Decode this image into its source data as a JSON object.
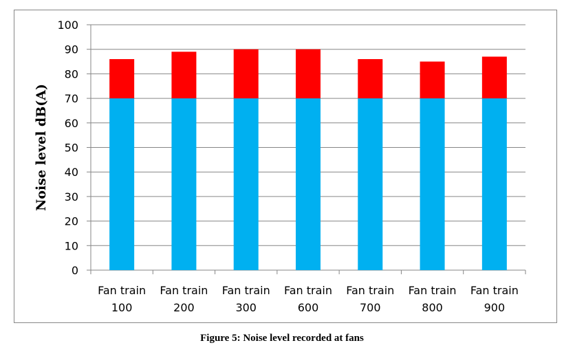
{
  "chart_data": {
    "type": "bar",
    "stacked": true,
    "categories": [
      "Fan train 100",
      "Fan train 200",
      "Fan train 300",
      "Fan train 600",
      "Fan train 700",
      "Fan train 800",
      "Fan train 900"
    ],
    "category_lines": [
      [
        "Fan train",
        "100"
      ],
      [
        "Fan train",
        "200"
      ],
      [
        "Fan train",
        "300"
      ],
      [
        "Fan train",
        "600"
      ],
      [
        "Fan train",
        "700"
      ],
      [
        "Fan train",
        "800"
      ],
      [
        "Fan train",
        "900"
      ]
    ],
    "series": [
      {
        "values": [
          70,
          70,
          70,
          70,
          70,
          70,
          70
        ],
        "color": "#00B0F0"
      },
      {
        "values": [
          16,
          19,
          20,
          20,
          16,
          15,
          17
        ],
        "color": "#FF0000"
      }
    ],
    "ylabel": "Noise level dB(A)",
    "ylim": [
      0,
      100
    ],
    "yticks": [
      0,
      10,
      20,
      30,
      40,
      50,
      60,
      70,
      80,
      90,
      100
    ],
    "grid": true,
    "legend": "none"
  },
  "caption": "Figure 5: Noise level recorded at fans"
}
